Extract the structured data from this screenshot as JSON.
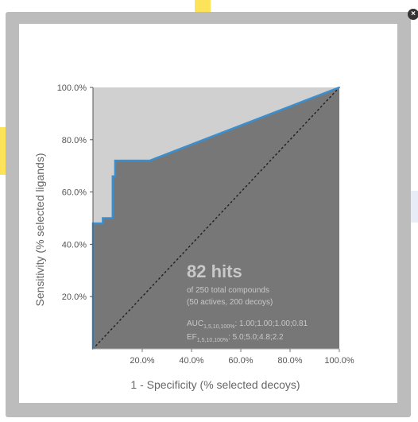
{
  "window": {
    "close_icon": "close-icon",
    "close_glyph": "×"
  },
  "colors": {
    "backdrop_accent": "#fde35a",
    "backdrop_blue": "#e8ecf7",
    "overlay": "#bcbcbc",
    "panel": "#ffffff",
    "plot_background": "#d0d0d0",
    "area_under_curve": "#777777",
    "roc_line": "#3a8fd0",
    "diagonal": "#222222",
    "annotation_text": "#c8c8c8"
  },
  "chart_data": {
    "type": "area",
    "xlabel": "1 - Specificity (% selected decoys)",
    "ylabel": "Sensitivity (% selected ligands)",
    "xlim": [
      0,
      100
    ],
    "ylim": [
      0,
      100
    ],
    "x_ticks": [
      "20.0%",
      "40.0%",
      "60.0%",
      "80.0%",
      "100.0%"
    ],
    "y_ticks": [
      "20.0%",
      "40.0%",
      "60.0%",
      "80.0%",
      "100.0%"
    ],
    "x_tick_values": [
      20,
      40,
      60,
      80,
      100
    ],
    "y_tick_values": [
      20,
      40,
      60,
      80,
      100
    ],
    "grid": false,
    "roc_curve": [
      {
        "x": 0,
        "y": 0
      },
      {
        "x": 0,
        "y": 48
      },
      {
        "x": 4,
        "y": 48
      },
      {
        "x": 4,
        "y": 50
      },
      {
        "x": 8,
        "y": 50
      },
      {
        "x": 8,
        "y": 66
      },
      {
        "x": 9,
        "y": 66
      },
      {
        "x": 9,
        "y": 72
      },
      {
        "x": 23,
        "y": 72
      },
      {
        "x": 100,
        "y": 100
      }
    ],
    "diagonal": [
      {
        "x": 0,
        "y": 0
      },
      {
        "x": 100,
        "y": 100
      }
    ],
    "annotations": {
      "hits": "82 hits",
      "total": "of 250 total compounds",
      "composition": "(50 actives, 200 decoys)",
      "auc_label": "AUC",
      "auc_sub": "1,5,10,100%",
      "auc_values": ": 1.00;1.00;1.00;0.81",
      "ef_label": "EF",
      "ef_sub": "1,5,10,100%",
      "ef_values": ": 5.0;5.0;4.8;2.2"
    }
  }
}
